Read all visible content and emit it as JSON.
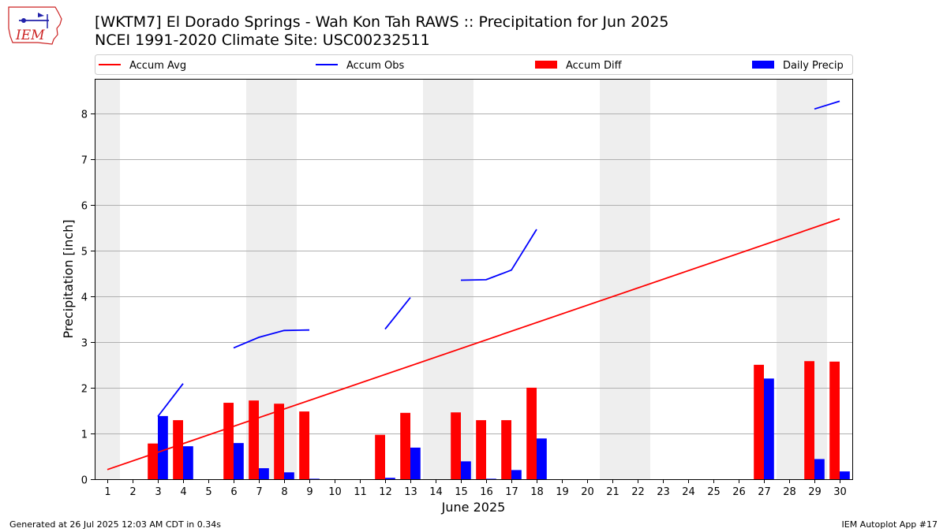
{
  "header": {
    "title": "[WKTM7] El Dorado Springs - Wah Kon Tah RAWS :: Precipitation for Jun 2025",
    "subtitle": "NCEI 1991-2020 Climate Site: USC00232511",
    "logo_text": "IEM"
  },
  "footer": {
    "left": "Generated at 26 Jul 2025 12:03 AM CDT in 0.34s",
    "right": "IEM Autoplot App #17"
  },
  "chart_data": {
    "type": "bar",
    "xlabel": "June 2025",
    "ylabel": "Precipitation [inch]",
    "xlim": [
      0.5,
      30.5
    ],
    "ylim": [
      0,
      8.75
    ],
    "yticks": [
      0,
      1,
      2,
      3,
      4,
      5,
      6,
      7,
      8
    ],
    "grid": "horizontal",
    "legend_position": "top",
    "weekend_shading_days": [
      1,
      7,
      8,
      14,
      15,
      21,
      22,
      28,
      29
    ],
    "colors": {
      "accum_avg": "#ff0000",
      "accum_obs": "#0000ff",
      "accum_diff": "#ff0000",
      "daily_precip": "#0000ff",
      "weekend_shade": "#eeeeee",
      "grid": "#b0b0b0",
      "logo_red": "#cc2222",
      "logo_blue": "#2222aa"
    },
    "legend": [
      {
        "name": "Accum Avg",
        "kind": "line",
        "color": "#ff0000"
      },
      {
        "name": "Accum Obs",
        "kind": "line",
        "color": "#0000ff"
      },
      {
        "name": "Accum Diff",
        "kind": "bar",
        "color": "#ff0000"
      },
      {
        "name": "Daily Precip",
        "kind": "bar",
        "color": "#0000ff"
      }
    ],
    "days": [
      1,
      2,
      3,
      4,
      5,
      6,
      7,
      8,
      9,
      10,
      11,
      12,
      13,
      14,
      15,
      16,
      17,
      18,
      19,
      20,
      21,
      22,
      23,
      24,
      25,
      26,
      27,
      28,
      29,
      30
    ],
    "accum_avg": {
      "start": [
        1,
        0.21
      ],
      "end": [
        30,
        5.69
      ]
    },
    "accum_obs_segments": [
      [
        [
          3,
          1.37
        ],
        [
          4,
          2.09
        ]
      ],
      [
        [
          6,
          2.87
        ],
        [
          7,
          3.1
        ],
        [
          8,
          3.25
        ],
        [
          9,
          3.26
        ]
      ],
      [
        [
          12,
          3.28
        ],
        [
          13,
          3.97
        ]
      ],
      [
        [
          15,
          4.35
        ],
        [
          16,
          4.36
        ],
        [
          17,
          4.57
        ],
        [
          18,
          5.46
        ]
      ],
      [
        [
          29,
          8.09
        ],
        [
          30,
          8.26
        ]
      ]
    ],
    "accum_diff": [
      {
        "day": 3,
        "value": 0.78
      },
      {
        "day": 4,
        "value": 1.29
      },
      {
        "day": 6,
        "value": 1.67
      },
      {
        "day": 7,
        "value": 1.72
      },
      {
        "day": 8,
        "value": 1.65
      },
      {
        "day": 9,
        "value": 1.48
      },
      {
        "day": 12,
        "value": 0.97
      },
      {
        "day": 13,
        "value": 1.45
      },
      {
        "day": 15,
        "value": 1.46
      },
      {
        "day": 16,
        "value": 1.29
      },
      {
        "day": 17,
        "value": 1.29
      },
      {
        "day": 18,
        "value": 2.0
      },
      {
        "day": 27,
        "value": 2.5
      },
      {
        "day": 29,
        "value": 2.58
      },
      {
        "day": 30,
        "value": 2.57
      }
    ],
    "daily_precip": [
      {
        "day": 3,
        "value": 1.38
      },
      {
        "day": 4,
        "value": 0.72
      },
      {
        "day": 6,
        "value": 0.79
      },
      {
        "day": 7,
        "value": 0.24
      },
      {
        "day": 8,
        "value": 0.15
      },
      {
        "day": 9,
        "value": 0.01
      },
      {
        "day": 12,
        "value": 0.03
      },
      {
        "day": 13,
        "value": 0.69
      },
      {
        "day": 15,
        "value": 0.39
      },
      {
        "day": 16,
        "value": 0.01
      },
      {
        "day": 17,
        "value": 0.2
      },
      {
        "day": 18,
        "value": 0.89
      },
      {
        "day": 27,
        "value": 2.2
      },
      {
        "day": 29,
        "value": 0.44
      },
      {
        "day": 30,
        "value": 0.17
      }
    ]
  }
}
